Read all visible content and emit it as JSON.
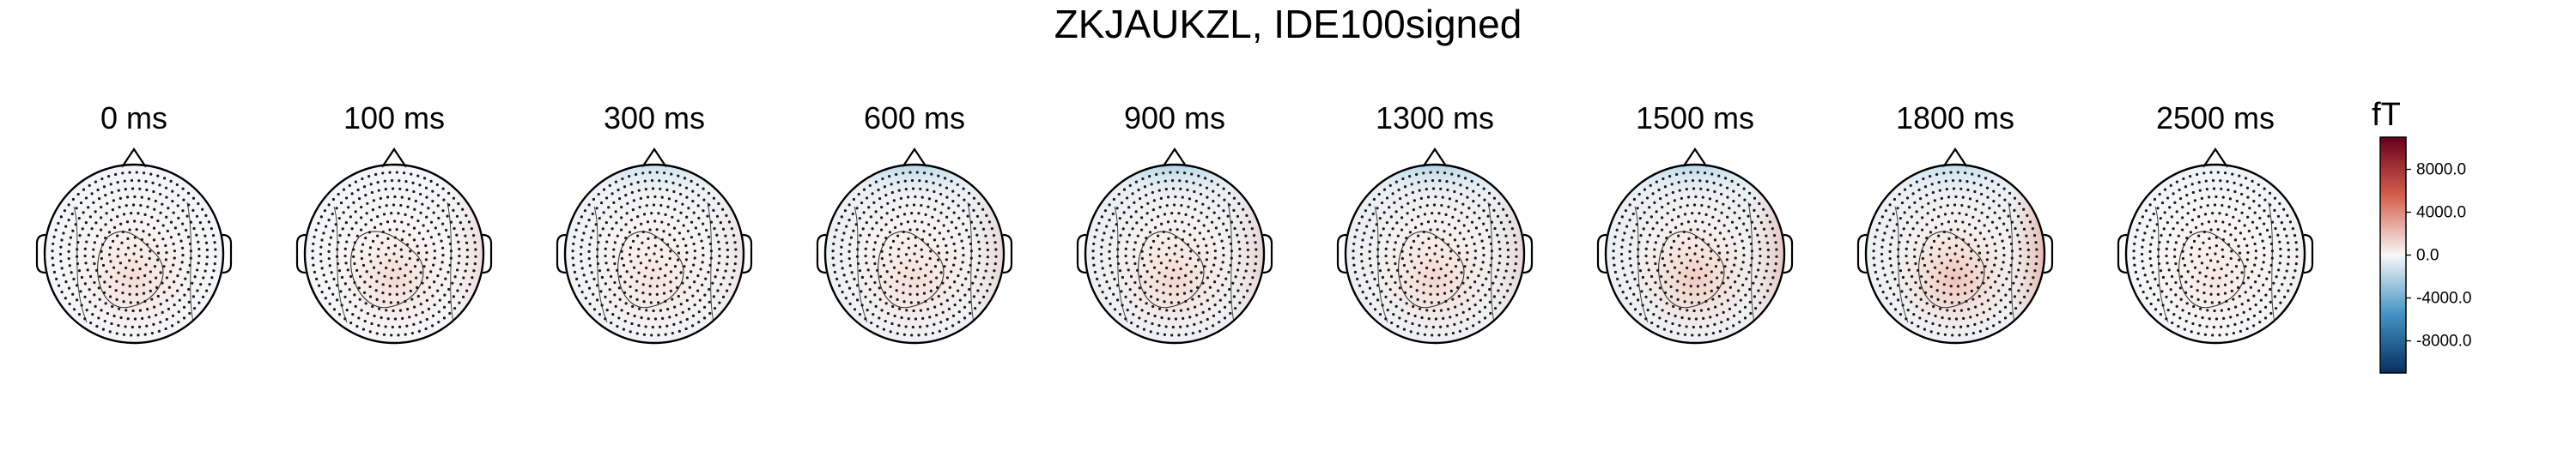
{
  "chart_data": {
    "type": "heatmap",
    "subtype": "topomap",
    "title": "ZKJAUKZL, IDE100signed",
    "times": [
      {
        "label": "0 ms",
        "blue": 0.0,
        "red": 0.12,
        "red_side": 0.0,
        "shift": 0.0,
        "center": 0.08
      },
      {
        "label": "100 ms",
        "blue": 0.0,
        "red": 0.15,
        "red_side": 0.18,
        "shift": -0.1,
        "center": 0.0
      },
      {
        "label": "300 ms",
        "blue": 0.55,
        "red": 0.08,
        "red_side": 0.1,
        "shift": 0.0,
        "center": 0.0
      },
      {
        "label": "600 ms",
        "blue": 0.85,
        "red": 0.12,
        "red_side": 0.18,
        "shift": 0.0,
        "center": 0.0
      },
      {
        "label": "900 ms",
        "blue": 0.95,
        "red": 0.15,
        "red_side": 0.2,
        "shift": 0.0,
        "center": 0.05
      },
      {
        "label": "1300 ms",
        "blue": 0.95,
        "red": 0.15,
        "red_side": 0.18,
        "shift": 0.0,
        "center": 0.08
      },
      {
        "label": "1500 ms",
        "blue": 0.85,
        "red": 0.22,
        "red_side": 0.3,
        "shift": 0.0,
        "center": 0.15
      },
      {
        "label": "1800 ms",
        "blue": 0.7,
        "red": 0.28,
        "red_side": 0.4,
        "shift": 0.0,
        "center": 0.18
      },
      {
        "label": "2500 ms",
        "blue": 0.1,
        "red": 0.05,
        "red_side": 0.05,
        "shift": 0.0,
        "center": 0.02
      }
    ],
    "colorbar": {
      "unit": "fT",
      "ticks": [
        8000.0,
        4000.0,
        0.0,
        -4000.0,
        -8000.0
      ],
      "tick_labels": [
        "8000.0",
        "4000.0",
        "0.0",
        "-4000.0",
        "-8000.0"
      ],
      "range": [
        -11000,
        11000
      ],
      "colormap": "RdBu_r",
      "colors": {
        "top": "#67001f",
        "upper_mid": "#d6604d",
        "mid": "#f7f7f7",
        "lower_mid": "#4393c3",
        "bottom": "#053061"
      }
    },
    "sensor_grid": "dense",
    "head_outline": true,
    "contours": true
  }
}
